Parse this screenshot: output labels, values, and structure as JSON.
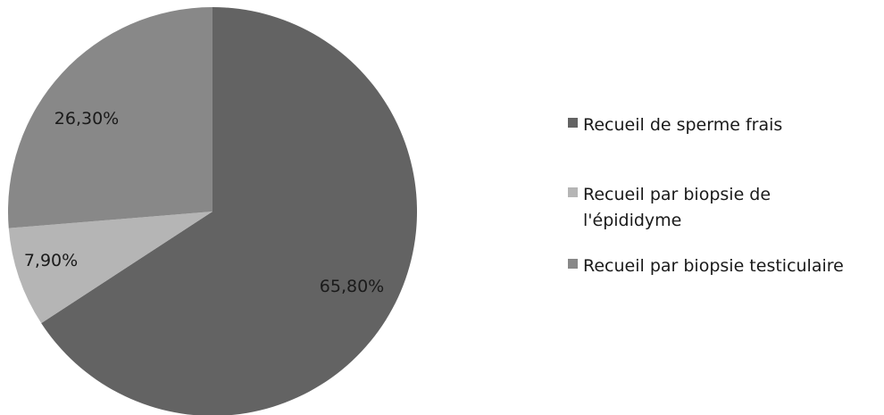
{
  "chart_data": {
    "type": "pie",
    "title": "",
    "start_angle_deg": 0,
    "direction": "clockwise",
    "slices": [
      {
        "name": "Recueil de sperme frais",
        "value": 65.8,
        "label": "65,80%",
        "color": "#636363"
      },
      {
        "name": "Recueil par biopsie de l'épididyme",
        "value": 7.9,
        "label": "7,90%",
        "color": "#b5b5b5"
      },
      {
        "name": "Recueil par biopsie testiculaire",
        "value": 26.3,
        "label": "26,30%",
        "color": "#888888"
      }
    ],
    "legend": {
      "placement": "right",
      "entries": [
        {
          "line1": "Recueil de sperme frais",
          "line2": ""
        },
        {
          "line1": "Recueil par biopsie de",
          "line2": "l'épididyme"
        },
        {
          "line1": "Recueil par biopsie testiculaire",
          "line2": ""
        }
      ]
    }
  }
}
